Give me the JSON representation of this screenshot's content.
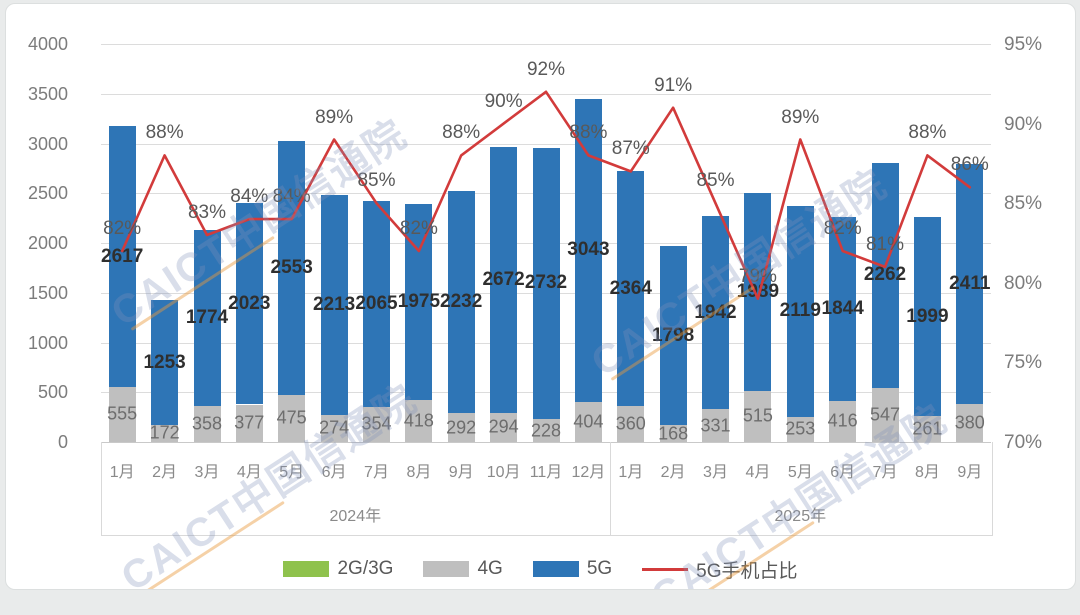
{
  "watermark": {
    "text": "CAICT中国信通院"
  },
  "chart_data": {
    "type": "combo",
    "categories": [
      "1月",
      "2月",
      "3月",
      "4月",
      "5月",
      "6月",
      "7月",
      "8月",
      "9月",
      "10月",
      "11月",
      "12月",
      "1月",
      "2月",
      "3月",
      "4月",
      "5月",
      "6月",
      "7月",
      "8月",
      "9月"
    ],
    "year_groups": [
      {
        "label": "2024年",
        "count": 12
      },
      {
        "label": "2025年",
        "count": 9
      }
    ],
    "series": [
      {
        "name": "2G/3G",
        "type": "bar",
        "color": "#8fc24d",
        "values": []
      },
      {
        "name": "4G",
        "type": "bar",
        "color": "#bfbfbf",
        "values": [
          555,
          172,
          358,
          377,
          475,
          274,
          354,
          418,
          292,
          294,
          228,
          404,
          360,
          168,
          331,
          515,
          253,
          416,
          547,
          261,
          380
        ]
      },
      {
        "name": "5G",
        "type": "bar",
        "color": "#2e75b6",
        "values": [
          2617,
          1253,
          1774,
          2023,
          2553,
          2213,
          2065,
          1975,
          2232,
          2672,
          2732,
          3043,
          2364,
          1798,
          1942,
          1989,
          2119,
          1844,
          2262,
          1999,
          2411
        ]
      },
      {
        "name": "5G手机占比",
        "type": "line",
        "axis": "right",
        "color": "#d23b3b",
        "values": [
          82,
          88,
          83,
          84,
          84,
          89,
          85,
          82,
          88,
          90,
          92,
          88,
          87,
          91,
          85,
          79,
          89,
          82,
          81,
          88,
          86
        ]
      }
    ],
    "left_axis": {
      "min": 0,
      "max": 4000,
      "step": 500,
      "ticks": [
        "0",
        "500",
        "1000",
        "1500",
        "2000",
        "2500",
        "3000",
        "3500",
        "4000"
      ]
    },
    "right_axis": {
      "min": 70,
      "max": 95,
      "step": 5,
      "ticks": [
        "70%",
        "75%",
        "80%",
        "85%",
        "90%",
        "95%"
      ]
    },
    "grid": true,
    "legend_position": "bottom",
    "stacked": true
  }
}
